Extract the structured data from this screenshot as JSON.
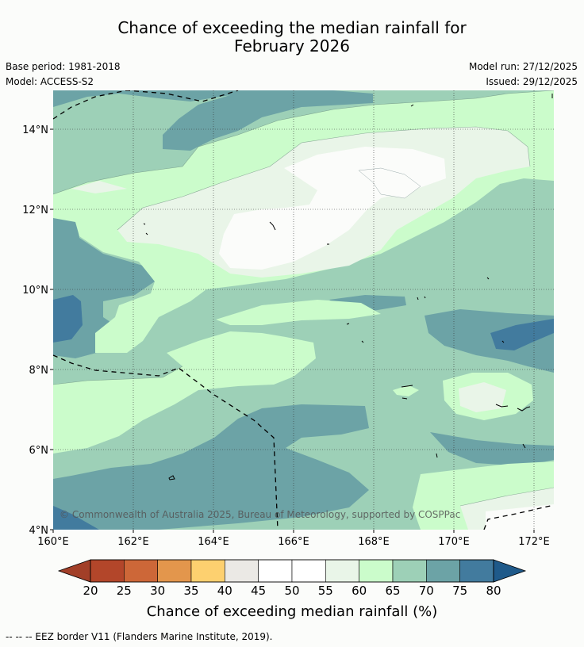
{
  "title": {
    "line1": "Chance of exceeding the median rainfall for",
    "line2": "February 2026"
  },
  "meta": {
    "base_period": "Base period: 1981-2018",
    "model": "Model: ACCESS-S2",
    "model_run": "Model run: 27/12/2025",
    "issued": "Issued: 29/12/2025"
  },
  "map": {
    "x_ticks": [
      "160°E",
      "162°E",
      "164°E",
      "166°E",
      "168°E",
      "170°E",
      "172°E"
    ],
    "y_ticks": [
      "14°N",
      "12°N",
      "10°N",
      "8°N",
      "6°N",
      "4°N"
    ],
    "copyright": "© Commonwealth of Australia 2025, Bureau of Meteorology, supported by COSPPac"
  },
  "colorbar": {
    "labels": [
      "20",
      "25",
      "30",
      "35",
      "40",
      "45",
      "50",
      "55",
      "60",
      "65",
      "70",
      "75",
      "80"
    ],
    "colors": [
      "#b3462a",
      "#cd6738",
      "#e3964c",
      "#fdd06f",
      "#ebe9e5",
      "#ffffff",
      "#ffffff",
      "#e9f5e8",
      "#cbfccb",
      "#9dd0b7",
      "#6ca3a6",
      "#427b9e"
    ],
    "under_color": "#a23f28",
    "over_color": "#1f5a8a",
    "title": "Chance of exceeding median rainfall (%)"
  },
  "footnote": "--  --  -- EEZ border V11 (Flanders Marine Institute, 2019)."
}
